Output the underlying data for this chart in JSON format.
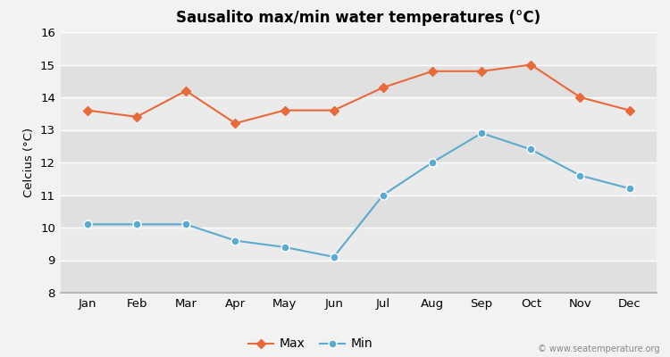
{
  "title": "Sausalito max/min water temperatures (°C)",
  "ylabel": "Celcius (°C)",
  "months": [
    "Jan",
    "Feb",
    "Mar",
    "Apr",
    "May",
    "Jun",
    "Jul",
    "Aug",
    "Sep",
    "Oct",
    "Nov",
    "Dec"
  ],
  "max_values": [
    13.6,
    13.4,
    14.2,
    13.2,
    13.6,
    13.6,
    14.3,
    14.8,
    14.8,
    15.0,
    14.0,
    13.6
  ],
  "min_values": [
    10.1,
    10.1,
    10.1,
    9.6,
    9.4,
    9.1,
    11.0,
    12.0,
    12.9,
    12.4,
    11.6,
    11.2
  ],
  "max_color": "#e8693a",
  "min_color": "#5aabcf",
  "ylim": [
    8,
    16
  ],
  "yticks": [
    8,
    9,
    10,
    11,
    12,
    13,
    14,
    15,
    16
  ],
  "bg_color": "#f2f2f2",
  "plot_bg_color_light": "#ebebeb",
  "plot_bg_color_dark": "#e0e0e0",
  "grid_color": "#ffffff",
  "watermark": "© www.seatemperature.org",
  "legend_max": "Max",
  "legend_min": "Min"
}
